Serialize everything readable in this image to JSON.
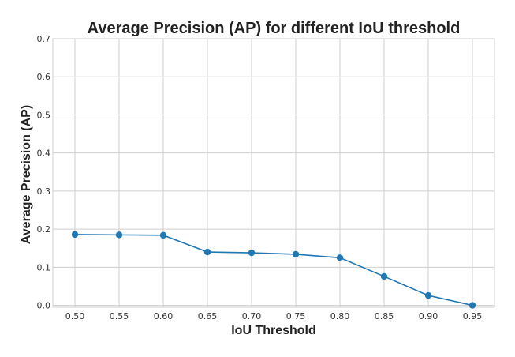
{
  "chart_data": {
    "type": "line",
    "title": "Average Precision (AP) for different IoU threshold",
    "xlabel": "IoU Threshold",
    "ylabel": "Average Precision (AP)",
    "x": [
      "0.50",
      "0.55",
      "0.60",
      "0.65",
      "0.70",
      "0.75",
      "0.80",
      "0.85",
      "0.90",
      "0.95"
    ],
    "x_numeric": [
      0.5,
      0.55,
      0.6,
      0.65,
      0.7,
      0.75,
      0.8,
      0.85,
      0.9,
      0.95
    ],
    "xlim": [
      0.475,
      0.975
    ],
    "ylim": [
      -0.005,
      0.7
    ],
    "yticks": [
      "0.0",
      "0.1",
      "0.2",
      "0.3",
      "0.4",
      "0.5",
      "0.6",
      "0.7"
    ],
    "yticks_numeric": [
      0.0,
      0.1,
      0.2,
      0.3,
      0.4,
      0.5,
      0.6,
      0.7
    ],
    "grid": true,
    "series": [
      {
        "values": [
          0.186,
          0.185,
          0.184,
          0.14,
          0.138,
          0.134,
          0.125,
          0.076,
          0.026,
          0.0
        ],
        "color": "#1f77b4",
        "marker": "circle"
      }
    ]
  }
}
